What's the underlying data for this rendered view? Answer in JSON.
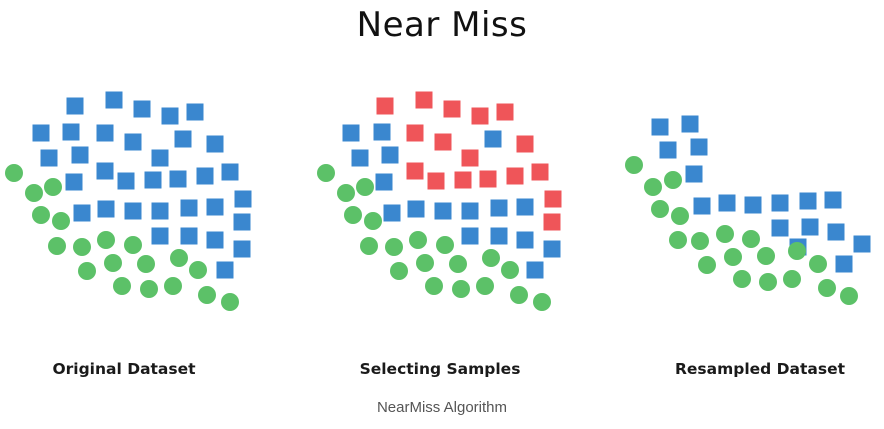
{
  "title": "Near Miss",
  "panels": [
    {
      "label": "Original Dataset"
    },
    {
      "label": "Selecting Samples"
    },
    {
      "label": "Resampled Dataset"
    }
  ],
  "caption": "NearMiss Algorithm",
  "colors": {
    "majority": "#3a87cf",
    "selected": "#ef5559",
    "minority": "#5cc168",
    "title": "#111111",
    "caption": "#555555"
  }
}
